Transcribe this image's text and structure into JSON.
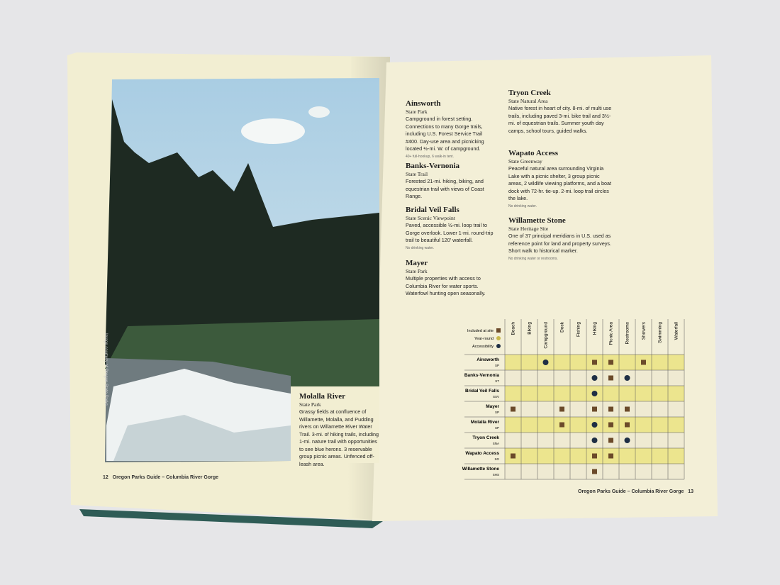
{
  "left_page": {
    "photo_credit": "Image courtesy of Oregon State Parks",
    "feature": {
      "title": "Molalla River",
      "subtitle": "State Park",
      "text": "Grassy fields at confluence of Willamette, Molalla, and Pudding rivers on Willamette River Water Trail. 3-mi. of hiking trails, including 1-mi. nature trail with opportunities to see blue herons. 3 reservable group picnic areas. Unfenced off-leash area."
    },
    "footer": {
      "page": "12",
      "text": "Oregon Parks Guide – Columbia River Gorge"
    }
  },
  "right_page": {
    "entries": [
      {
        "title": "Ainsworth",
        "subtitle": "State Park",
        "text": "Campground in forest setting. Connections to many Gorge trails, including U.S. Forest Service Trail #400. Day-use area and picnicking located ½-mi. W. of campground.",
        "note": "40+ full-hookup, 6 walk-in tent."
      },
      {
        "title": "Banks-Vernonia",
        "subtitle": "State Trail",
        "text": "Forested 21-mi. hiking, biking, and equestrian trail with views of Coast Range."
      },
      {
        "title": "Bridal Veil Falls",
        "subtitle": "State Scenic Viewpoint",
        "text": "Paved, accessible ½-mi. loop trail to Gorge overlook. Lower 1-mi. round-trip trail to beautiful 120' waterfall.",
        "note": "No drinking water."
      },
      {
        "title": "Mayer",
        "subtitle": "State Park",
        "text": "Multiple properties with access to Columbia River for water sports. Waterfowl hunting open seasonally."
      },
      {
        "title": "Tryon Creek",
        "subtitle": "State Natural Area",
        "text": "Native forest in heart of city. 8-mi. of multi use trails, including paved 3-mi. bike trail and 3½-mi. of equestrian trails. Summer youth day camps, school tours, guided walks."
      },
      {
        "title": "Wapato Access",
        "subtitle": "State Greenway",
        "text": "Peaceful natural area surrounding Virginia Lake with a picnic shelter, 3 group picnic areas, 2 wildlife viewing platforms, and a boat dock with 72-hr. tie-up. 2-mi. loop trail circles the lake.",
        "note": "No drinking water."
      },
      {
        "title": "Willamette Stone",
        "subtitle": "State Heritage Site",
        "text": "One of 37 principal meridians in U.S. used as reference point for land and property surveys. Short walk to historical marker.",
        "note": "No drinking water or restrooms."
      }
    ],
    "table": {
      "legend": [
        "Included at site",
        "Year-round",
        "Accessibility"
      ],
      "columns": [
        "Beach",
        "Biking",
        "Campground",
        "Dock",
        "Fishing",
        "Hiking",
        "Picnic Area",
        "Restrooms",
        "Showers",
        "Swimming",
        "Waterfall"
      ],
      "rows": [
        {
          "name": "Ainsworth",
          "code": "SP",
          "cells": [
            null,
            null,
            "Accessibility",
            null,
            null,
            "Included at site",
            "Included at site",
            null,
            "Included at site",
            null,
            null
          ]
        },
        {
          "name": "Banks-Vernonia",
          "code": "ST",
          "cells": [
            null,
            null,
            null,
            null,
            null,
            "Accessibility",
            "Included at site",
            "Accessibility",
            null,
            null,
            null
          ]
        },
        {
          "name": "Bridal Veil Falls",
          "code": "SSV",
          "cells": [
            null,
            null,
            null,
            null,
            null,
            "Accessibility",
            null,
            null,
            null,
            null,
            null
          ]
        },
        {
          "name": "Mayer",
          "code": "SP",
          "cells": [
            "Included at site",
            null,
            null,
            "Included at site",
            null,
            "Included at site",
            "Included at site",
            "Included at site",
            null,
            null,
            null
          ]
        },
        {
          "name": "Molalla River",
          "code": "SP",
          "cells": [
            null,
            null,
            null,
            "Included at site",
            null,
            "Accessibility",
            "Included at site",
            "Included at site",
            null,
            null,
            null
          ]
        },
        {
          "name": "Tryon Creek",
          "code": "SNA",
          "cells": [
            null,
            null,
            null,
            null,
            null,
            "Accessibility",
            "Included at site",
            "Accessibility",
            null,
            null,
            null
          ]
        },
        {
          "name": "Wapato Access",
          "code": "SG",
          "cells": [
            "Included at site",
            null,
            null,
            null,
            null,
            "Included at site",
            "Included at site",
            null,
            null,
            null,
            null
          ]
        },
        {
          "name": "Willamette Stone",
          "code": "SHS",
          "cells": [
            null,
            null,
            null,
            null,
            null,
            "Included at site",
            null,
            null,
            null,
            null,
            null
          ]
        }
      ]
    },
    "footer": {
      "text": "Oregon Parks Guide – Columbia River Gorge",
      "page": "13"
    }
  }
}
